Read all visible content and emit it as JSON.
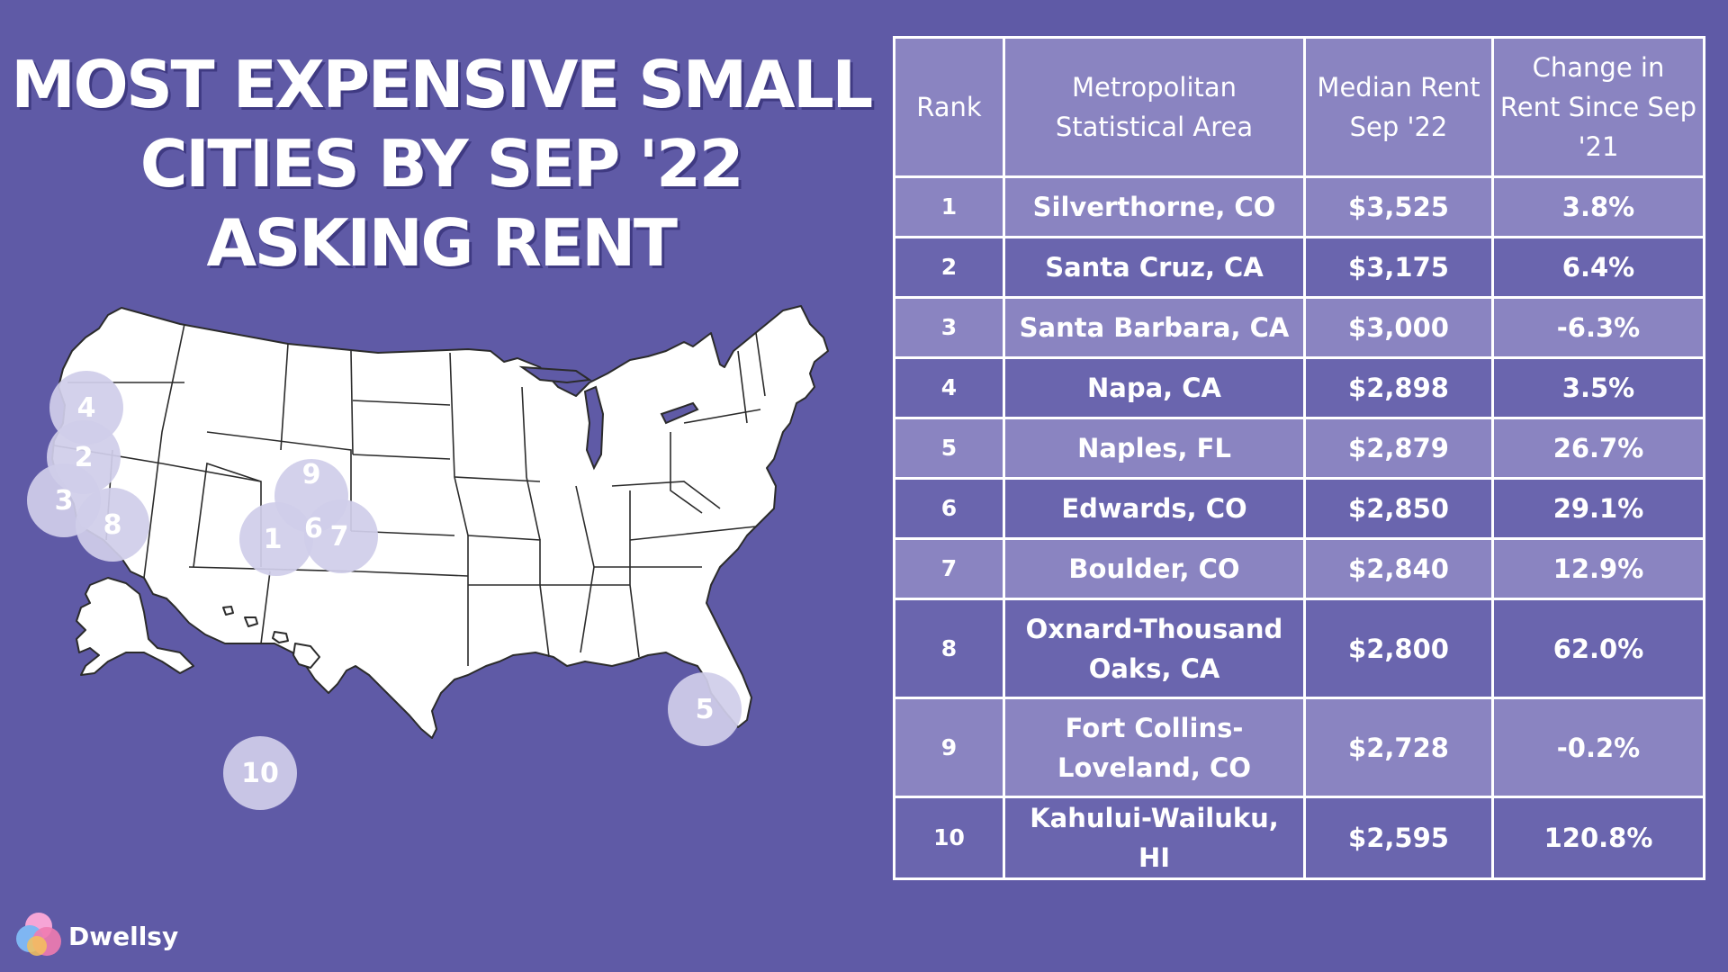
{
  "title": "MOST EXPENSIVE SMALL CITIES BY SEP '22 ASKING RENT",
  "colors": {
    "background": "#5f5aa6",
    "table_light": "#8a84c1",
    "table_dark": "#6a65ae",
    "marker": "#d0ceea",
    "map_land": "#ffffff"
  },
  "map": {
    "markers": [
      "4",
      "2",
      "3",
      "8",
      "9",
      "1",
      "6",
      "7",
      "5",
      "10"
    ]
  },
  "table": {
    "headers": [
      "Rank",
      "Metropolitan Statistical Area",
      "Median Rent Sep '22",
      "Change in Rent Since Sep '21"
    ],
    "rows": [
      {
        "rank": "1",
        "area": "Silverthorne, CO",
        "rent": "$3,525",
        "change": "3.8%"
      },
      {
        "rank": "2",
        "area": "Santa Cruz, CA",
        "rent": "$3,175",
        "change": "6.4%"
      },
      {
        "rank": "3",
        "area": "Santa Barbara, CA",
        "rent": "$3,000",
        "change": "-6.3%"
      },
      {
        "rank": "4",
        "area": "Napa, CA",
        "rent": "$2,898",
        "change": "3.5%"
      },
      {
        "rank": "5",
        "area": "Naples, FL",
        "rent": "$2,879",
        "change": "26.7%"
      },
      {
        "rank": "6",
        "area": "Edwards, CO",
        "rent": "$2,850",
        "change": "29.1%"
      },
      {
        "rank": "7",
        "area": "Boulder, CO",
        "rent": "$2,840",
        "change": "12.9%"
      },
      {
        "rank": "8",
        "area": "Oxnard-Thousand Oaks, CA",
        "rent": "$2,800",
        "change": "62.0%"
      },
      {
        "rank": "9",
        "area": "Fort Collins-Loveland, CO",
        "rent": "$2,728",
        "change": "-0.2%"
      },
      {
        "rank": "10",
        "area": "Kahului-Wailuku, HI",
        "rent": "$2,595",
        "change": "120.8%"
      }
    ]
  },
  "logo": {
    "text": "Dwellsy",
    "icon": "dwellsy-logo-icon"
  }
}
